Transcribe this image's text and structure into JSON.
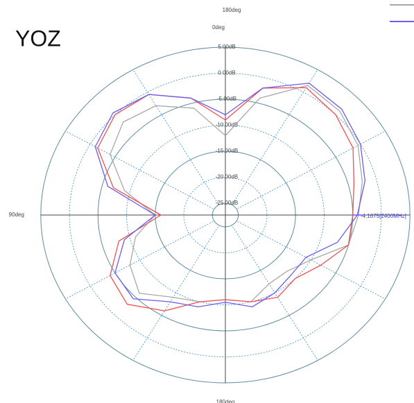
{
  "chart_data": {
    "type": "polar",
    "title": "YOZ",
    "top_label": "180deg",
    "x": [
      0,
      15,
      30,
      45,
      60,
      75,
      90,
      105,
      120,
      135,
      150,
      165,
      180,
      195,
      210,
      225,
      240,
      255,
      270,
      285,
      300,
      315,
      330,
      345
    ],
    "series": [
      {
        "color": "#a8a8a8",
        "values": [
          -12,
          -6,
          -3,
          -2,
          -4,
          -9,
          -15,
          -11,
          -8,
          -6,
          -9,
          -10,
          -11,
          -10,
          -12,
          -12,
          -10,
          -5,
          -4,
          -2.5,
          -0.5,
          1,
          1.5,
          -4
        ]
      },
      {
        "color": "#f05050",
        "values": [
          -9,
          -4,
          -0.5,
          0,
          -1.5,
          -7,
          -16,
          -8,
          -4,
          -3,
          -6,
          -10,
          -11,
          -10,
          -9,
          -10,
          -8,
          -5,
          -5,
          -4,
          -1.5,
          0,
          1,
          -2
        ]
      },
      {
        "color": "#6a5cf0",
        "values": [
          -8,
          -4,
          -0.5,
          0.5,
          -1,
          -6,
          -15,
          -9,
          -5,
          -4.5,
          -8,
          -9,
          -10.5,
          -9,
          -10,
          -11,
          -11,
          -7,
          -4.2,
          -2,
          0,
          1.5,
          2,
          -2
        ]
      }
    ],
    "rlim": [
      -25,
      5
    ],
    "rticks": [
      {
        "value": 5,
        "label": "5.00dB"
      },
      {
        "value": 0,
        "label": "0.00dB"
      },
      {
        "value": -5,
        "label": "-5.00dB"
      },
      {
        "value": -10,
        "label": "-10.00dB"
      },
      {
        "value": -15,
        "label": "-15.00dB"
      },
      {
        "value": -20,
        "label": "-20.00dB"
      },
      {
        "value": -25,
        "label": "-25.00dB"
      }
    ],
    "thetaticks": [
      {
        "value": 0,
        "label": "0deg"
      },
      {
        "value": 90,
        "label": "90deg"
      },
      {
        "value": 180,
        "label": "180deg"
      }
    ],
    "annotation": {
      "text": "-4.1675[2400MHz]",
      "theta": 270,
      "r": -4.1675
    }
  }
}
